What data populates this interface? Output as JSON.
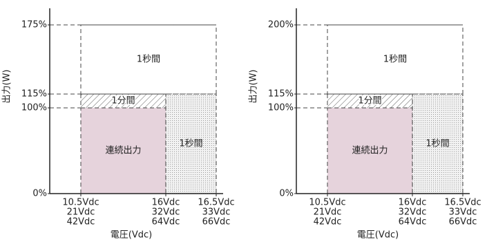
{
  "chart_data": [
    {
      "type": "region",
      "xlabel": "電圧(Vdc)",
      "ylabel": "出力(W)",
      "ylim": [
        0,
        175
      ],
      "yticks": [
        {
          "value": 0,
          "label": "0%"
        },
        {
          "value": 100,
          "label": "100%"
        },
        {
          "value": 115,
          "label": "115%"
        },
        {
          "value": 175,
          "label": "175%"
        }
      ],
      "xticks": [
        {
          "value": 10.5,
          "label": [
            "10.5Vdc",
            "21Vdc",
            "42Vdc"
          ]
        },
        {
          "value": 16,
          "label": [
            "16Vdc",
            "32Vdc",
            "64Vdc"
          ]
        },
        {
          "value": 16.5,
          "label": [
            "16.5Vdc",
            "33Vdc",
            "66Vdc"
          ]
        }
      ],
      "regions": [
        {
          "label": "1秒間",
          "x": [
            10.5,
            16.5
          ],
          "y": [
            115,
            175
          ],
          "fill": "none"
        },
        {
          "label": "1分間",
          "x": [
            10.5,
            16
          ],
          "y": [
            100,
            115
          ],
          "fill": "hatch"
        },
        {
          "label": "連続出力",
          "x": [
            10.5,
            16
          ],
          "y": [
            0,
            100
          ],
          "fill": "solid",
          "color": "#e6d3dc"
        },
        {
          "label": "1秒間",
          "x": [
            16,
            16.5
          ],
          "y": [
            0,
            115
          ],
          "fill": "dots"
        }
      ]
    },
    {
      "type": "region",
      "xlabel": "電圧(Vdc)",
      "ylabel": "出力(W)",
      "ylim": [
        0,
        200
      ],
      "yticks": [
        {
          "value": 0,
          "label": "0%"
        },
        {
          "value": 100,
          "label": "100%"
        },
        {
          "value": 115,
          "label": "115%"
        },
        {
          "value": 200,
          "label": "200%"
        }
      ],
      "xticks": [
        {
          "value": 10.5,
          "label": [
            "10.5Vdc",
            "21Vdc",
            "42Vdc"
          ]
        },
        {
          "value": 16,
          "label": [
            "16Vdc",
            "32Vdc",
            "64Vdc"
          ]
        },
        {
          "value": 16.5,
          "label": [
            "16.5Vdc",
            "33Vdc",
            "66Vdc"
          ]
        }
      ],
      "regions": [
        {
          "label": "1秒間",
          "x": [
            10.5,
            16.5
          ],
          "y": [
            115,
            200
          ],
          "fill": "none"
        },
        {
          "label": "1分間",
          "x": [
            10.5,
            16
          ],
          "y": [
            100,
            115
          ],
          "fill": "hatch"
        },
        {
          "label": "連続出力",
          "x": [
            10.5,
            16
          ],
          "y": [
            0,
            100
          ],
          "fill": "solid",
          "color": "#e6d3dc"
        },
        {
          "label": "1秒間",
          "x": [
            16,
            16.5
          ],
          "y": [
            0,
            115
          ],
          "fill": "dots"
        }
      ]
    }
  ]
}
